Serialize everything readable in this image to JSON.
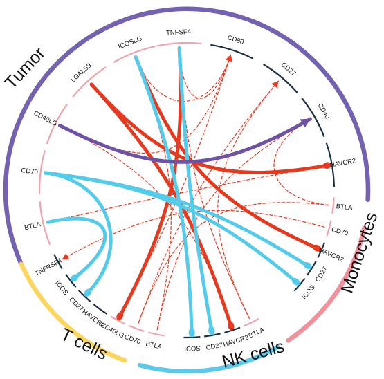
{
  "colors": {
    "tumor": "#7462b0",
    "monocytes": "#f2919a",
    "t_cells": "#fbd55c",
    "nk_cells": "#5dc9ea",
    "red": "#e43a20",
    "blue": "#55cbeb",
    "purple": "#6d52a6",
    "pink_segment": "#f0a3ab",
    "navy_segment": "#1b2f44"
  },
  "groups": [
    {
      "id": "tumor",
      "label": "Tumor"
    },
    {
      "id": "monocytes",
      "label": "Monocytes"
    },
    {
      "id": "t_cells",
      "label": "T cells"
    },
    {
      "id": "nk_cells",
      "label": "NK cells"
    }
  ],
  "genes": [
    {
      "id": "tumor-btla",
      "label": "BTLA",
      "group": "tumor"
    },
    {
      "id": "tumor-cd70",
      "label": "CD70",
      "group": "tumor"
    },
    {
      "id": "tumor-cd40lg",
      "label": "CD40LG",
      "group": "tumor"
    },
    {
      "id": "tumor-lgals9",
      "label": "LGALS9",
      "group": "tumor"
    },
    {
      "id": "tumor-icoslg",
      "label": "ICOSLG",
      "group": "tumor"
    },
    {
      "id": "tumor-tnfsf4",
      "label": "TNFSF4",
      "group": "tumor"
    },
    {
      "id": "tumor-cd80",
      "label": "CD80",
      "group": "tumor"
    },
    {
      "id": "tumor-cd27",
      "label": "CD27",
      "group": "tumor"
    },
    {
      "id": "tumor-cd40",
      "label": "CD40",
      "group": "tumor"
    },
    {
      "id": "tumor-havcr2",
      "label": "HAVCR2",
      "group": "tumor"
    },
    {
      "id": "mono-btla",
      "label": "BTLA",
      "group": "monocytes"
    },
    {
      "id": "mono-cd70",
      "label": "CD70",
      "group": "monocytes"
    },
    {
      "id": "mono-havcr2",
      "label": "HAVCR2",
      "group": "monocytes"
    },
    {
      "id": "mono-cd27",
      "label": "CD27",
      "group": "monocytes"
    },
    {
      "id": "mono-icos",
      "label": "ICOS",
      "group": "monocytes"
    },
    {
      "id": "nk-btla",
      "label": "BTLA",
      "group": "nk_cells"
    },
    {
      "id": "nk-havcr2",
      "label": "HAVCR2",
      "group": "nk_cells"
    },
    {
      "id": "nk-cd27",
      "label": "CD27",
      "group": "nk_cells"
    },
    {
      "id": "nk-icos",
      "label": "ICOS",
      "group": "nk_cells"
    },
    {
      "id": "t-btla",
      "label": "BTLA",
      "group": "t_cells"
    },
    {
      "id": "t-cd70",
      "label": "CD70",
      "group": "t_cells"
    },
    {
      "id": "t-cd40lg",
      "label": "CD40LG",
      "group": "t_cells"
    },
    {
      "id": "t-havcr2",
      "label": "HAVCR2",
      "group": "t_cells"
    },
    {
      "id": "t-cd27",
      "label": "CD27",
      "group": "t_cells"
    },
    {
      "id": "t-icos",
      "label": "ICOS",
      "group": "t_cells"
    },
    {
      "id": "t-tnfrsf4",
      "label": "TNFRSF4",
      "group": "t_cells"
    }
  ],
  "links": [
    {
      "from": "tumor-lgals9",
      "to": "tumor-havcr2",
      "style": "thick",
      "color": "red",
      "end": "drop"
    },
    {
      "from": "tumor-icoslg",
      "to": "mono-havcr2",
      "style": "thick",
      "color": "red",
      "end": "drop"
    },
    {
      "from": "tumor-tnfsf4",
      "to": "t-cd40lg",
      "style": "thick",
      "color": "red",
      "end": "drop"
    },
    {
      "from": "tumor-lgals9",
      "to": "nk-havcr2",
      "style": "thick",
      "color": "red",
      "end": "drop"
    },
    {
      "from": "tumor-icoslg",
      "to": "nk-icos",
      "style": "thick",
      "color": "blue",
      "end": "drop"
    },
    {
      "from": "tumor-tnfsf4",
      "to": "nk-cd27",
      "style": "thick",
      "color": "blue",
      "end": "drop"
    },
    {
      "from": "tumor-cd70",
      "to": "mono-cd27",
      "style": "thick",
      "color": "blue",
      "end": "drop"
    },
    {
      "from": "tumor-cd70",
      "to": "mono-icos",
      "style": "thick",
      "color": "blue",
      "end": "drop"
    },
    {
      "from": "tumor-btla",
      "to": "t-icos",
      "style": "thick",
      "color": "blue",
      "end": "drop"
    },
    {
      "from": "tumor-cd70",
      "to": "t-cd27",
      "style": "thick",
      "color": "blue",
      "end": "drop"
    },
    {
      "from": "tumor-cd40lg",
      "to": "tumor-cd40",
      "style": "thick",
      "color": "purple",
      "end": "arrow"
    },
    {
      "from": "tumor-icoslg",
      "to": "tumor-cd80",
      "style": "dashed",
      "color": "red",
      "end": "arrow"
    },
    {
      "from": "tumor-tnfsf4",
      "to": "tumor-cd80",
      "style": "dashed",
      "color": "red",
      "end": "arrow"
    },
    {
      "from": "t-cd40lg",
      "to": "tumor-cd80",
      "style": "dashed",
      "color": "red",
      "end": "arrow"
    },
    {
      "from": "t-cd70",
      "to": "tumor-cd27",
      "style": "dashed",
      "color": "red",
      "end": "arrow"
    },
    {
      "from": "nk-btla",
      "to": "tumor-cd27",
      "style": "dashed",
      "color": "red",
      "end": "arrow"
    },
    {
      "from": "t-btla",
      "to": "tumor-cd40",
      "style": "dashed",
      "color": "red",
      "end": "arrow"
    },
    {
      "from": "mono-btla",
      "to": "tumor-cd40",
      "style": "dashed",
      "color": "red",
      "end": "arrow"
    },
    {
      "from": "tumor-cd40lg",
      "to": "tumor-cd80",
      "style": "dashed",
      "color": "red",
      "end": "arrow"
    },
    {
      "from": "mono-cd70",
      "to": "t-tnfrsf4",
      "style": "dashed",
      "color": "red",
      "end": "arrow"
    },
    {
      "from": "tumor-btla",
      "to": "tumor-havcr2",
      "style": "dashed",
      "color": "red",
      "end": "none"
    },
    {
      "from": "tumor-icoslg",
      "to": "t-btla",
      "style": "dashed",
      "color": "red",
      "end": "none"
    },
    {
      "from": "tumor-tnfsf4",
      "to": "nk-btla",
      "style": "dashed",
      "color": "red",
      "end": "none"
    },
    {
      "from": "mono-btla",
      "to": "t-cd70",
      "style": "dashed",
      "color": "red",
      "end": "none"
    },
    {
      "from": "tumor-cd40lg",
      "to": "nk-havcr2",
      "style": "dashed",
      "color": "red",
      "end": "none"
    }
  ]
}
